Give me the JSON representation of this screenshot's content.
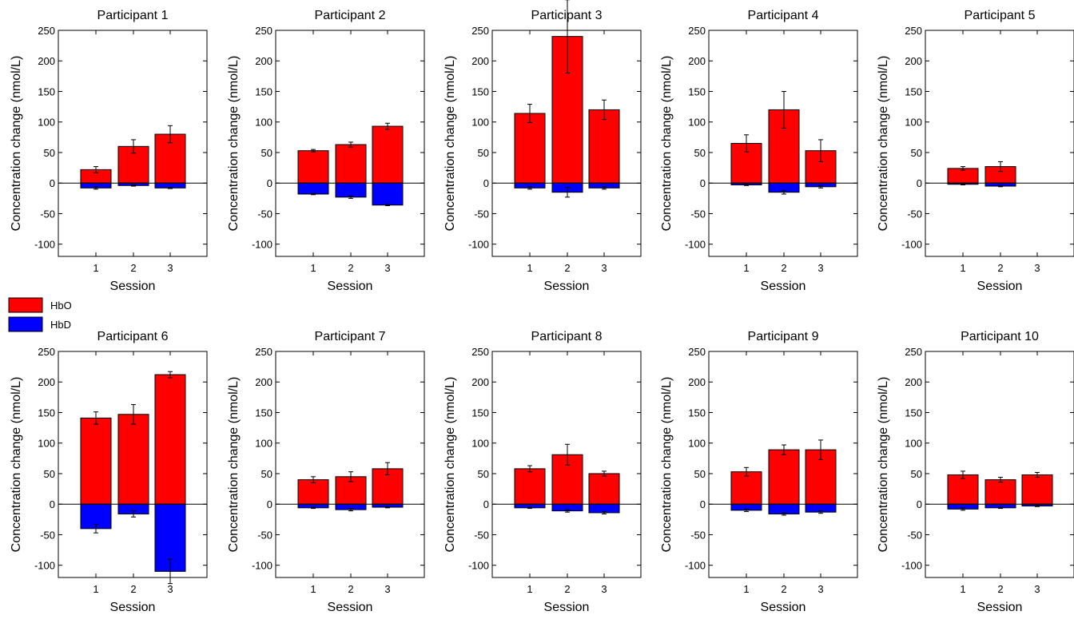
{
  "legend": {
    "hbo_label": "HbO",
    "hbd_label": "HbD",
    "hbo_color": "#ff0000",
    "hbd_color": "#0000ff"
  },
  "chart_data": [
    {
      "type": "bar",
      "title": "Participant 1",
      "xlabel": "Session",
      "ylabel": "Concentration change (nmol/L)",
      "categories": [
        "1",
        "2",
        "3"
      ],
      "ylim": [
        -120,
        250
      ],
      "yticks": [
        -100,
        -50,
        0,
        50,
        100,
        150,
        200,
        250
      ],
      "series": [
        {
          "name": "HbO",
          "values": [
            22,
            60,
            80
          ],
          "error": [
            5,
            11,
            14
          ]
        },
        {
          "name": "HbD",
          "values": [
            -8,
            -4,
            -8
          ],
          "error": [
            2,
            1,
            1
          ]
        }
      ]
    },
    {
      "type": "bar",
      "title": "Participant 2",
      "xlabel": "Session",
      "ylabel": "Concentration change (nmol/L)",
      "categories": [
        "1",
        "2",
        "3"
      ],
      "ylim": [
        -120,
        250
      ],
      "yticks": [
        -100,
        -50,
        0,
        50,
        100,
        150,
        200,
        250
      ],
      "series": [
        {
          "name": "HbO",
          "values": [
            53,
            63,
            93
          ],
          "error": [
            2,
            4,
            5
          ]
        },
        {
          "name": "HbD",
          "values": [
            -18,
            -23,
            -36
          ],
          "error": [
            1,
            2,
            1
          ]
        }
      ]
    },
    {
      "type": "bar",
      "title": "Participant 3",
      "xlabel": "Session",
      "ylabel": "Concentration change (nmol/L)",
      "categories": [
        "1",
        "2",
        "3"
      ],
      "ylim": [
        -120,
        250
      ],
      "yticks": [
        -100,
        -50,
        0,
        50,
        100,
        150,
        200,
        250
      ],
      "series": [
        {
          "name": "HbO",
          "values": [
            114,
            240,
            120
          ],
          "error": [
            15,
            60,
            16
          ]
        },
        {
          "name": "HbD",
          "values": [
            -8,
            -15,
            -8
          ],
          "error": [
            2,
            8,
            2
          ]
        }
      ]
    },
    {
      "type": "bar",
      "title": "Participant 4",
      "xlabel": "Session",
      "ylabel": "Concentration change (nmol/L)",
      "categories": [
        "1",
        "2",
        "3"
      ],
      "ylim": [
        -120,
        250
      ],
      "yticks": [
        -100,
        -50,
        0,
        50,
        100,
        150,
        200,
        250
      ],
      "series": [
        {
          "name": "HbO",
          "values": [
            65,
            120,
            53
          ],
          "error": [
            14,
            30,
            18
          ]
        },
        {
          "name": "HbD",
          "values": [
            -3,
            -15,
            -6
          ],
          "error": [
            1,
            3,
            2
          ]
        }
      ]
    },
    {
      "type": "bar",
      "title": "Participant 5",
      "xlabel": "Session",
      "ylabel": "Concentration change (nmol/L)",
      "categories": [
        "1",
        "2",
        "3"
      ],
      "ylim": [
        -120,
        250
      ],
      "yticks": [
        -100,
        -50,
        0,
        50,
        100,
        150,
        200,
        250
      ],
      "series": [
        {
          "name": "HbO",
          "values": [
            24,
            27,
            0
          ],
          "error": [
            3,
            8,
            0
          ]
        },
        {
          "name": "HbD",
          "values": [
            -2,
            -5,
            0
          ],
          "error": [
            1,
            1,
            0
          ]
        }
      ]
    },
    {
      "type": "bar",
      "title": "Participant 6",
      "xlabel": "Session",
      "ylabel": "Concentration change (nmol/L)",
      "categories": [
        "1",
        "2",
        "3"
      ],
      "ylim": [
        -120,
        250
      ],
      "yticks": [
        -100,
        -50,
        0,
        50,
        100,
        150,
        200,
        250
      ],
      "series": [
        {
          "name": "HbO",
          "values": [
            141,
            147,
            212
          ],
          "error": [
            10,
            16,
            5
          ]
        },
        {
          "name": "HbD",
          "values": [
            -40,
            -16,
            -110
          ],
          "error": [
            7,
            5,
            20
          ]
        }
      ]
    },
    {
      "type": "bar",
      "title": "Participant 7",
      "xlabel": "Session",
      "ylabel": "Concentration change (nmol/L)",
      "categories": [
        "1",
        "2",
        "3"
      ],
      "ylim": [
        -120,
        250
      ],
      "yticks": [
        -100,
        -50,
        0,
        50,
        100,
        150,
        200,
        250
      ],
      "series": [
        {
          "name": "HbO",
          "values": [
            40,
            45,
            58
          ],
          "error": [
            5,
            8,
            10
          ]
        },
        {
          "name": "HbD",
          "values": [
            -6,
            -9,
            -5
          ],
          "error": [
            1,
            2,
            1
          ]
        }
      ]
    },
    {
      "type": "bar",
      "title": "Participant 8",
      "xlabel": "Session",
      "ylabel": "Concentration change (nmol/L)",
      "categories": [
        "1",
        "2",
        "3"
      ],
      "ylim": [
        -120,
        250
      ],
      "yticks": [
        -100,
        -50,
        0,
        50,
        100,
        150,
        200,
        250
      ],
      "series": [
        {
          "name": "HbO",
          "values": [
            58,
            81,
            50
          ],
          "error": [
            5,
            17,
            4
          ]
        },
        {
          "name": "HbD",
          "values": [
            -6,
            -11,
            -14
          ],
          "error": [
            1,
            2,
            2
          ]
        }
      ]
    },
    {
      "type": "bar",
      "title": "Participant 9",
      "xlabel": "Session",
      "ylabel": "Concentration change (nmol/L)",
      "categories": [
        "1",
        "2",
        "3"
      ],
      "ylim": [
        -120,
        250
      ],
      "yticks": [
        -100,
        -50,
        0,
        50,
        100,
        150,
        200,
        250
      ],
      "series": [
        {
          "name": "HbO",
          "values": [
            53,
            89,
            89
          ],
          "error": [
            7,
            8,
            16
          ]
        },
        {
          "name": "HbD",
          "values": [
            -10,
            -16,
            -13
          ],
          "error": [
            2,
            2,
            2
          ]
        }
      ]
    },
    {
      "type": "bar",
      "title": "Participant 10",
      "xlabel": "Session",
      "ylabel": "Concentration change (nmol/L)",
      "categories": [
        "1",
        "2",
        "3"
      ],
      "ylim": [
        -120,
        250
      ],
      "yticks": [
        -100,
        -50,
        0,
        50,
        100,
        150,
        200,
        250
      ],
      "series": [
        {
          "name": "HbO",
          "values": [
            48,
            40,
            48
          ],
          "error": [
            6,
            4,
            4
          ]
        },
        {
          "name": "HbD",
          "values": [
            -8,
            -6,
            -3
          ],
          "error": [
            2,
            1,
            1
          ]
        }
      ]
    }
  ]
}
